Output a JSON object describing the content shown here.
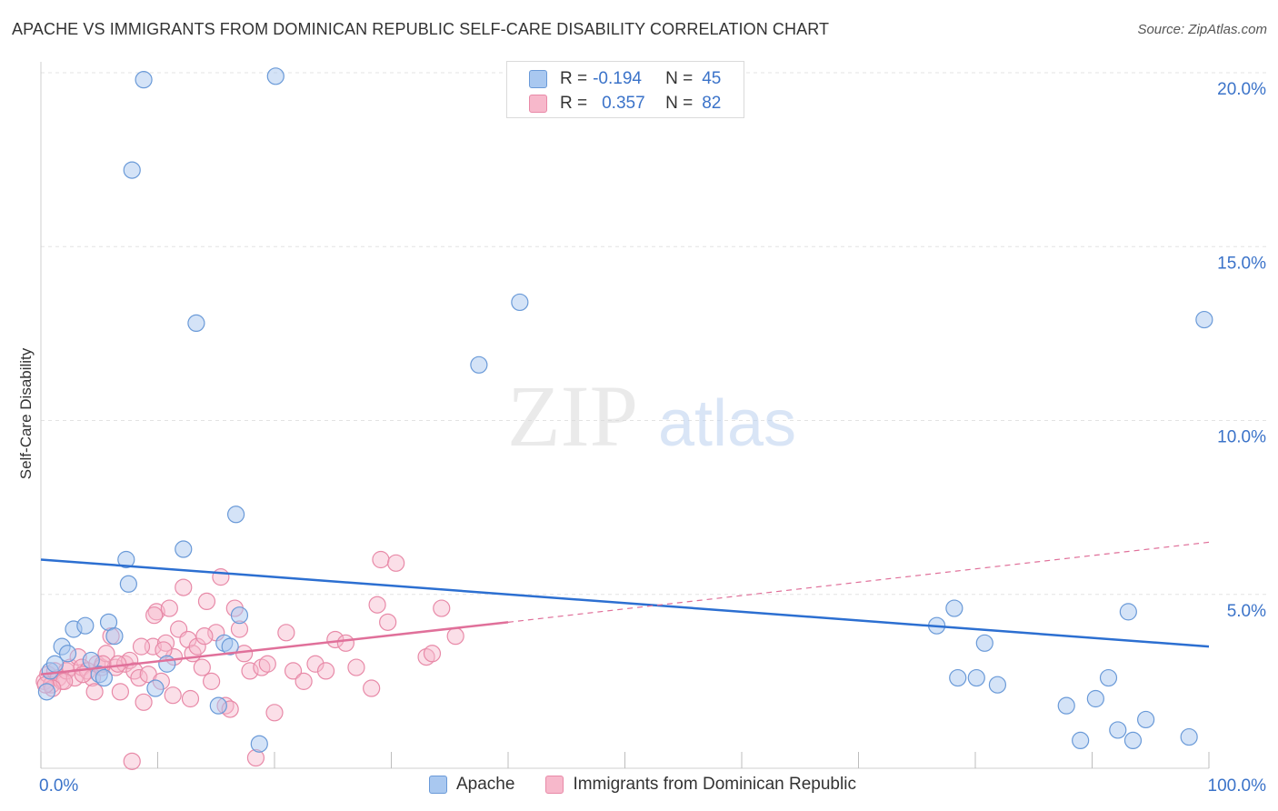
{
  "header": {
    "title": "APACHE VS IMMIGRANTS FROM DOMINICAN REPUBLIC SELF-CARE DISABILITY CORRELATION CHART",
    "source": "Source: ZipAtlas.com"
  },
  "watermark": {
    "zip": "ZIP",
    "atlas": "atlas"
  },
  "stats": [
    {
      "r_label": "R =",
      "r_value": "-0.194",
      "n_label": "N =",
      "n_value": "45"
    },
    {
      "r_label": "R =",
      "r_value": "0.357",
      "n_label": "N =",
      "n_value": "82"
    }
  ],
  "legend": [
    {
      "label": "Apache"
    },
    {
      "label": "Immigrants from Dominican Republic"
    }
  ],
  "colors": {
    "apache_fill": "#a9c8f0",
    "apache_stroke": "#6a9ad8",
    "apache_line": "#2c6fd1",
    "dominican_fill": "#f7b8cb",
    "dominican_stroke": "#e88aa8",
    "dominican_line": "#e0709a",
    "axis_label": "#3b73c9",
    "grid": "#e3e3e3"
  },
  "chart_data": {
    "type": "scatter",
    "title": "APACHE VS IMMIGRANTS FROM DOMINICAN REPUBLIC SELF-CARE DISABILITY CORRELATION CHART",
    "xlabel": "",
    "ylabel": "Self-Care Disability",
    "xlim": [
      0,
      100
    ],
    "ylim": [
      0,
      20.5
    ],
    "x_tick_labels": [
      "0.0%",
      "100.0%"
    ],
    "y_ticks": [
      5,
      10,
      15,
      20
    ],
    "y_tick_labels": [
      "5.0%",
      "10.0%",
      "15.0%",
      "20.0%"
    ],
    "grid": true,
    "legend_position": "bottom-center",
    "series": [
      {
        "name": "Apache",
        "points": [
          [
            0.5,
            2.2
          ],
          [
            0.8,
            2.8
          ],
          [
            1.2,
            3.0
          ],
          [
            1.8,
            3.5
          ],
          [
            2.3,
            3.3
          ],
          [
            2.8,
            4.0
          ],
          [
            3.8,
            4.1
          ],
          [
            4.3,
            3.1
          ],
          [
            5.0,
            2.7
          ],
          [
            5.4,
            2.6
          ],
          [
            5.8,
            4.2
          ],
          [
            6.3,
            3.8
          ],
          [
            7.3,
            6.0
          ],
          [
            7.5,
            5.3
          ],
          [
            7.8,
            17.2
          ],
          [
            8.8,
            19.8
          ],
          [
            9.8,
            2.3
          ],
          [
            10.8,
            3.0
          ],
          [
            12.2,
            6.3
          ],
          [
            13.3,
            12.8
          ],
          [
            15.2,
            1.8
          ],
          [
            15.7,
            3.6
          ],
          [
            16.2,
            3.5
          ],
          [
            16.7,
            7.3
          ],
          [
            17.0,
            4.4
          ],
          [
            18.7,
            0.7
          ],
          [
            20.1,
            19.9
          ],
          [
            37.5,
            11.6
          ],
          [
            41.0,
            13.4
          ],
          [
            92.2,
            1.1
          ],
          [
            76.7,
            4.1
          ],
          [
            78.2,
            4.6
          ],
          [
            78.5,
            2.6
          ],
          [
            80.1,
            2.6
          ],
          [
            80.8,
            3.6
          ],
          [
            81.9,
            2.4
          ],
          [
            87.8,
            1.8
          ],
          [
            89.0,
            0.8
          ],
          [
            90.3,
            2.0
          ],
          [
            91.4,
            2.6
          ],
          [
            93.1,
            4.5
          ],
          [
            93.5,
            0.8
          ],
          [
            94.6,
            1.4
          ],
          [
            98.3,
            0.9
          ],
          [
            99.6,
            12.9
          ]
        ],
        "trendline": {
          "x0": 0,
          "y0": 6.0,
          "x1": 100,
          "y1": 3.5
        }
      },
      {
        "name": "Immigrants from Dominican Republic",
        "points": [
          [
            0.3,
            2.5
          ],
          [
            0.6,
            2.7
          ],
          [
            0.9,
            2.4
          ],
          [
            1.2,
            2.8
          ],
          [
            1.5,
            2.6
          ],
          [
            1.8,
            2.5
          ],
          [
            2.2,
            2.8
          ],
          [
            2.5,
            2.9
          ],
          [
            2.9,
            2.6
          ],
          [
            3.2,
            3.2
          ],
          [
            3.5,
            2.9
          ],
          [
            4.0,
            2.8
          ],
          [
            4.4,
            2.6
          ],
          [
            4.8,
            3.0
          ],
          [
            5.2,
            2.9
          ],
          [
            5.6,
            3.3
          ],
          [
            6.0,
            3.8
          ],
          [
            6.4,
            2.9
          ],
          [
            6.8,
            2.2
          ],
          [
            7.2,
            3.0
          ],
          [
            7.6,
            3.1
          ],
          [
            8.0,
            2.8
          ],
          [
            8.4,
            2.6
          ],
          [
            8.8,
            1.9
          ],
          [
            9.2,
            2.7
          ],
          [
            9.6,
            3.5
          ],
          [
            9.9,
            4.5
          ],
          [
            10.3,
            2.5
          ],
          [
            10.7,
            3.6
          ],
          [
            11.0,
            4.6
          ],
          [
            11.4,
            3.2
          ],
          [
            11.8,
            4.0
          ],
          [
            12.2,
            5.2
          ],
          [
            12.6,
            3.7
          ],
          [
            13.0,
            3.3
          ],
          [
            13.4,
            3.5
          ],
          [
            13.8,
            2.9
          ],
          [
            14.2,
            4.8
          ],
          [
            14.6,
            2.5
          ],
          [
            15.0,
            3.9
          ],
          [
            15.4,
            5.5
          ],
          [
            15.8,
            1.8
          ],
          [
            16.2,
            1.7
          ],
          [
            16.6,
            4.6
          ],
          [
            17.0,
            4.0
          ],
          [
            17.4,
            3.3
          ],
          [
            17.9,
            2.8
          ],
          [
            18.4,
            0.3
          ],
          [
            18.9,
            2.9
          ],
          [
            19.4,
            3.0
          ],
          [
            20.0,
            1.6
          ],
          [
            21.0,
            3.9
          ],
          [
            21.6,
            2.8
          ],
          [
            22.5,
            2.5
          ],
          [
            23.5,
            3.0
          ],
          [
            24.4,
            2.8
          ],
          [
            25.2,
            3.7
          ],
          [
            26.1,
            3.6
          ],
          [
            27.0,
            2.9
          ],
          [
            28.3,
            2.3
          ],
          [
            28.8,
            4.7
          ],
          [
            29.7,
            4.2
          ],
          [
            29.1,
            6.0
          ],
          [
            30.4,
            5.9
          ],
          [
            33.0,
            3.2
          ],
          [
            33.5,
            3.3
          ],
          [
            34.3,
            4.6
          ],
          [
            35.5,
            3.8
          ],
          [
            7.8,
            0.2
          ],
          [
            9.7,
            4.4
          ],
          [
            11.3,
            2.1
          ],
          [
            12.8,
            2.0
          ],
          [
            14.0,
            3.8
          ],
          [
            2.0,
            2.5
          ],
          [
            3.6,
            2.7
          ],
          [
            4.6,
            2.2
          ],
          [
            5.3,
            3.0
          ],
          [
            6.6,
            3.0
          ],
          [
            8.6,
            3.5
          ],
          [
            10.5,
            3.4
          ],
          [
            1.0,
            2.3
          ],
          [
            0.4,
            2.4
          ]
        ],
        "trendline_solid": {
          "x0": 0,
          "y0": 2.7,
          "x1": 40,
          "y1": 4.2
        },
        "trendline_dashed": {
          "x0": 40,
          "y0": 4.2,
          "x1": 100,
          "y1": 6.5
        }
      }
    ]
  }
}
